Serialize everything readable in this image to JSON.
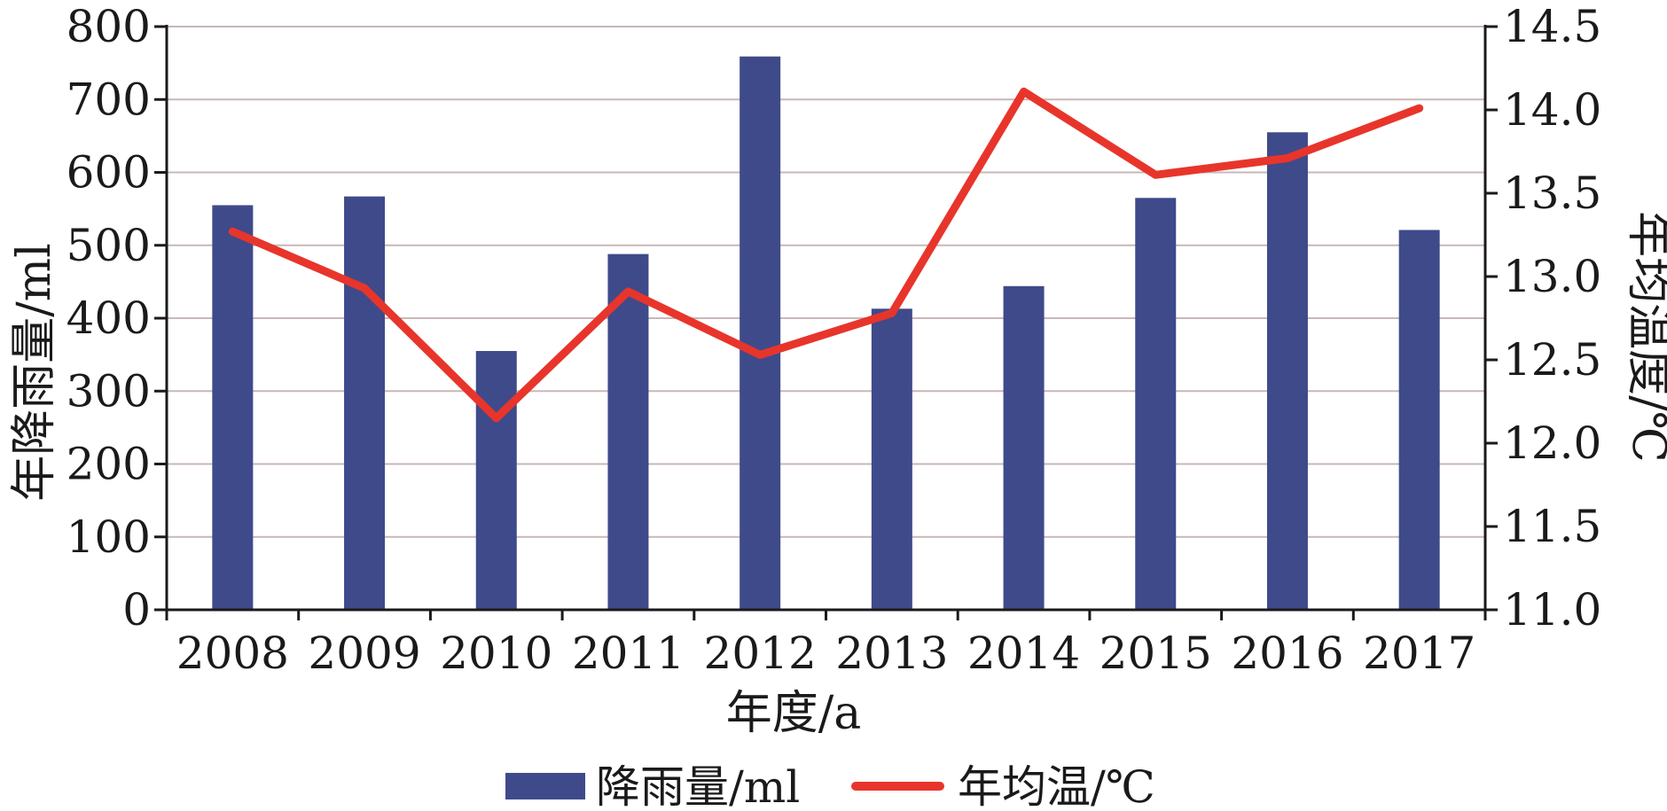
{
  "chart_data": {
    "type": "bar+line",
    "categories": [
      "2008",
      "2009",
      "2010",
      "2011",
      "2012",
      "2013",
      "2014",
      "2015",
      "2016",
      "2017"
    ],
    "series": [
      {
        "name": "降雨量/ml",
        "type": "bar",
        "axis": "left",
        "color": "#3f4a8a",
        "values": [
          555,
          567,
          355,
          488,
          759,
          413,
          444,
          565,
          655,
          521
        ]
      },
      {
        "name": "年均温/℃",
        "type": "line",
        "axis": "right",
        "color": "#e8352b",
        "values": [
          13.27,
          12.93,
          12.15,
          12.91,
          12.53,
          12.78,
          14.11,
          13.61,
          13.71,
          14.01
        ]
      }
    ],
    "xlabel": "年度/a",
    "ylabel": "年降雨量/ml",
    "y2label": "年均温度/℃",
    "ylim": [
      0,
      800
    ],
    "y2lim": [
      11.0,
      14.5
    ],
    "yticks": [
      "0",
      "100",
      "200",
      "300",
      "400",
      "500",
      "600",
      "700",
      "800"
    ],
    "y2ticks": [
      "11.0",
      "11.5",
      "12.0",
      "12.5",
      "13.0",
      "13.5",
      "14.0",
      "14.5"
    ],
    "grid": true,
    "legend": "bottom-center",
    "grid_color": "#c9b7b7",
    "axis_color": "#1a1a1a"
  }
}
